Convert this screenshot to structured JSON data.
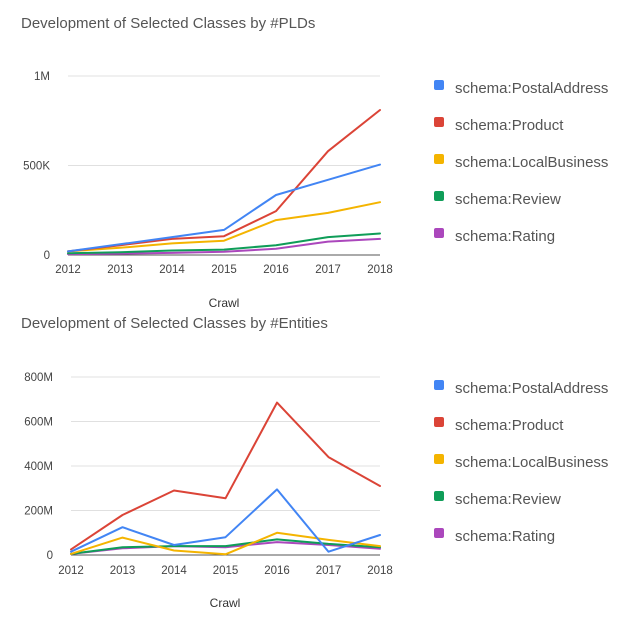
{
  "colors": {
    "schema:PostalAddress": "#4285f4",
    "schema:Product": "#db4437",
    "schema:LocalBusiness": "#f4b400",
    "schema:Review": "#0f9d58",
    "schema:Rating": "#ab47bc"
  },
  "chart_data": [
    {
      "type": "line",
      "title": "Development of Selected Classes by #PLDs",
      "xlabel": "Crawl",
      "ylabel": "",
      "x": [
        "2012",
        "2013",
        "2014",
        "2015",
        "2016",
        "2017",
        "2018"
      ],
      "ylim": [
        0,
        1000000
      ],
      "yticks": [
        0,
        500000,
        1000000
      ],
      "ytick_labels": [
        "0",
        "500K",
        "1M"
      ],
      "grid": true,
      "legend_position": "right",
      "series": [
        {
          "name": "schema:PostalAddress",
          "values": [
            20000,
            60000,
            100000,
            140000,
            335000,
            420000,
            505000
          ]
        },
        {
          "name": "schema:Product",
          "values": [
            20000,
            55000,
            90000,
            105000,
            245000,
            580000,
            810000
          ]
        },
        {
          "name": "schema:LocalBusiness",
          "values": [
            20000,
            40000,
            65000,
            80000,
            195000,
            235000,
            295000
          ]
        },
        {
          "name": "schema:Review",
          "values": [
            10000,
            15000,
            25000,
            30000,
            55000,
            100000,
            120000
          ]
        },
        {
          "name": "schema:Rating",
          "values": [
            5000,
            8000,
            12000,
            18000,
            35000,
            75000,
            90000
          ]
        }
      ]
    },
    {
      "type": "line",
      "title": "Development of Selected Classes by #Entities",
      "xlabel": "Crawl",
      "ylabel": "",
      "x": [
        "2012",
        "2013",
        "2014",
        "2015",
        "2016",
        "2017",
        "2018"
      ],
      "ylim": [
        0,
        800000000
      ],
      "yticks": [
        0,
        200000000,
        400000000,
        600000000,
        800000000
      ],
      "ytick_labels": [
        "0",
        "200M",
        "400M",
        "600M",
        "800M"
      ],
      "grid": true,
      "legend_position": "right",
      "series": [
        {
          "name": "schema:PostalAddress",
          "values": [
            15000000,
            125000000,
            45000000,
            80000000,
            295000000,
            15000000,
            90000000
          ]
        },
        {
          "name": "schema:Product",
          "values": [
            25000000,
            180000000,
            290000000,
            255000000,
            685000000,
            440000000,
            310000000
          ]
        },
        {
          "name": "schema:LocalBusiness",
          "values": [
            5000000,
            78000000,
            20000000,
            3000000,
            100000000,
            68000000,
            40000000
          ]
        },
        {
          "name": "schema:Review",
          "values": [
            5000000,
            35000000,
            40000000,
            40000000,
            70000000,
            50000000,
            35000000
          ]
        },
        {
          "name": "schema:Rating",
          "values": [
            5000000,
            30000000,
            40000000,
            35000000,
            58000000,
            45000000,
            28000000
          ]
        }
      ]
    }
  ]
}
